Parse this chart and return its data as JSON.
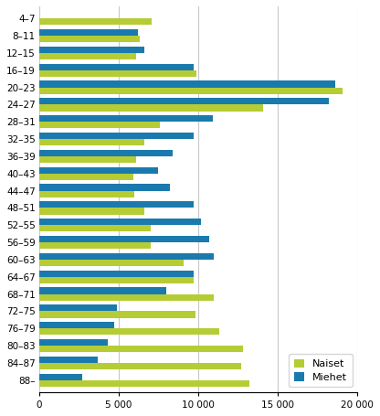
{
  "categories": [
    "4–7",
    "8–11",
    "12–15",
    "16–19",
    "20–23",
    "24–27",
    "28–31",
    "32–35",
    "36–39",
    "40–43",
    "44–47",
    "48–51",
    "52–55",
    "56–59",
    "60–63",
    "64–67",
    "68–71",
    "72–75",
    "76–79",
    "80–83",
    "84–87",
    "88–"
  ],
  "naiset": [
    7100,
    6300,
    6100,
    9900,
    19100,
    14100,
    7600,
    6600,
    6100,
    5900,
    6000,
    6600,
    7000,
    7000,
    9100,
    9700,
    11000,
    9800,
    11300,
    12800,
    12700,
    13200
  ],
  "miehet": [
    0,
    6200,
    6600,
    9700,
    18600,
    18200,
    10900,
    9700,
    8400,
    7500,
    8200,
    9700,
    10200,
    10700,
    11000,
    9700,
    8000,
    4900,
    4700,
    4300,
    3700,
    2700
  ],
  "naiset_color": "#b5cc35",
  "miehet_color": "#1a7aad",
  "background_color": "#ffffff",
  "xlim": [
    0,
    20000
  ],
  "xticks": [
    0,
    5000,
    10000,
    15000,
    20000
  ],
  "xticklabels": [
    "0",
    "5 000",
    "10 000",
    "15 000",
    "20 000"
  ],
  "legend_labels": [
    "Naiset",
    "Miehet"
  ],
  "grid_color": "#c8c8c8"
}
